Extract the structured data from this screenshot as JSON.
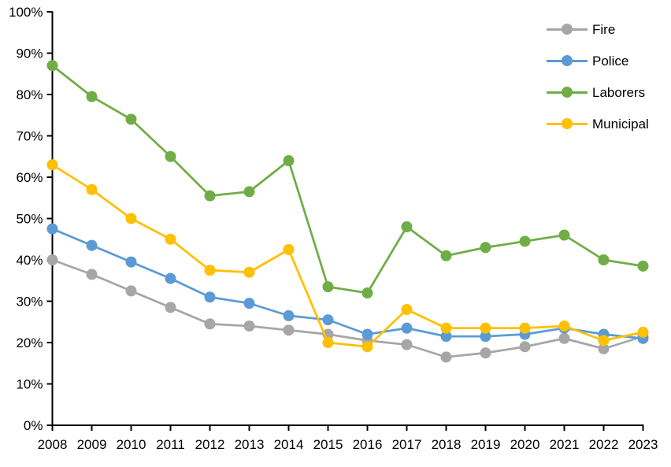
{
  "chart_data": {
    "type": "line",
    "title": "",
    "xlabel": "",
    "ylabel": "",
    "x_labels": [
      "2008",
      "2009",
      "2010",
      "2011",
      "2012",
      "2013",
      "2014",
      "2015",
      "2016",
      "2017",
      "2018",
      "2019",
      "2020",
      "2021",
      "2022",
      "2023"
    ],
    "series": [
      {
        "name": "Fire",
        "color": "#A6A6A6",
        "values": [
          40,
          36.5,
          32.5,
          28.5,
          24.5,
          24,
          23,
          22,
          20.5,
          19.5,
          16.5,
          17.5,
          19,
          21,
          18.5,
          21.5
        ]
      },
      {
        "name": "Police",
        "color": "#5B9BD5",
        "values": [
          47.5,
          43.5,
          39.5,
          35.5,
          31,
          29.5,
          26.5,
          25.5,
          22,
          23.5,
          21.5,
          21.5,
          22,
          23.5,
          22,
          21
        ]
      },
      {
        "name": "Laborers",
        "color": "#70AD47",
        "values": [
          87,
          79.5,
          74,
          65,
          55.5,
          56.5,
          64,
          33.5,
          32,
          48,
          41,
          43,
          44.5,
          46,
          40,
          38.5
        ]
      },
      {
        "name": "Municipal",
        "color": "#FFC000",
        "values": [
          63,
          57,
          50,
          45,
          37.5,
          37,
          42.5,
          20,
          19,
          28,
          23.5,
          23.5,
          23.5,
          24,
          20.5,
          22.5
        ]
      }
    ],
    "ylim": [
      0,
      100
    ],
    "y_tick_step": 10,
    "y_tick_suffix": "%",
    "y_tick_labels": [
      "0%",
      "10%",
      "20%",
      "30%",
      "40%",
      "50%",
      "60%",
      "70%",
      "80%",
      "90%",
      "100%"
    ],
    "grid": false,
    "legend_position": "top-right",
    "axis_color": "#000000",
    "marker": "circle",
    "marker_radius": 7
  }
}
